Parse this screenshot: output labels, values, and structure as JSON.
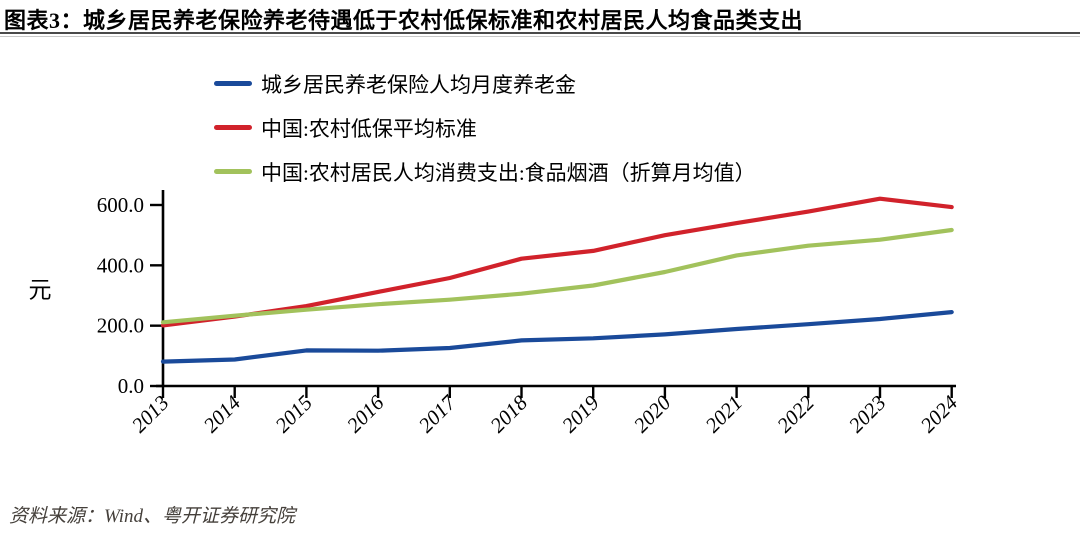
{
  "header": {
    "title": "图表3：城乡居民养老保险养老待遇低于农村低保标准和农村居民人均食品类支出"
  },
  "footer": {
    "source": "资料来源：Wind、粤开证券研究院"
  },
  "colors": {
    "pension_line": "#1A4A9A",
    "dibao_line": "#D1222B",
    "food_line": "#A2C25C",
    "axis": "#000000",
    "divider_dark": "#4a4a4a",
    "divider_light": "#c9c9c9",
    "source_text": "#45403b"
  },
  "chart_data": {
    "type": "line",
    "x": [
      "2013",
      "2014",
      "2015",
      "2016",
      "2017",
      "2018",
      "2019",
      "2020",
      "2021",
      "2022",
      "2023",
      "2024"
    ],
    "series": [
      {
        "name": "城乡居民养老保险人均月度养老金",
        "color": "#1A4A9A",
        "values": [
          81,
          88,
          118,
          117,
          126,
          151,
          158,
          171,
          189,
          205,
          222,
          245
        ]
      },
      {
        "name": "中国:农村低保平均标准",
        "color": "#D1222B",
        "values": [
          201,
          230,
          265,
          312,
          358,
          422,
          448,
          500,
          540,
          578,
          621,
          593
        ]
      },
      {
        "name": "中国:农村居民人均消费支出:食品烟酒（折算月均值）",
        "color": "#A2C25C",
        "values": [
          211,
          233,
          253,
          271,
          286,
          306,
          333,
          378,
          433,
          465,
          485,
          517
        ]
      }
    ],
    "ylabel": "元",
    "yticks": [
      0,
      200,
      400,
      600
    ],
    "ytick_labels": [
      "0.0",
      "200.0",
      "400.0",
      "600.0"
    ],
    "ylim": [
      0,
      650
    ],
    "xlabel": "",
    "grid": false,
    "legend_position": "top-left"
  }
}
